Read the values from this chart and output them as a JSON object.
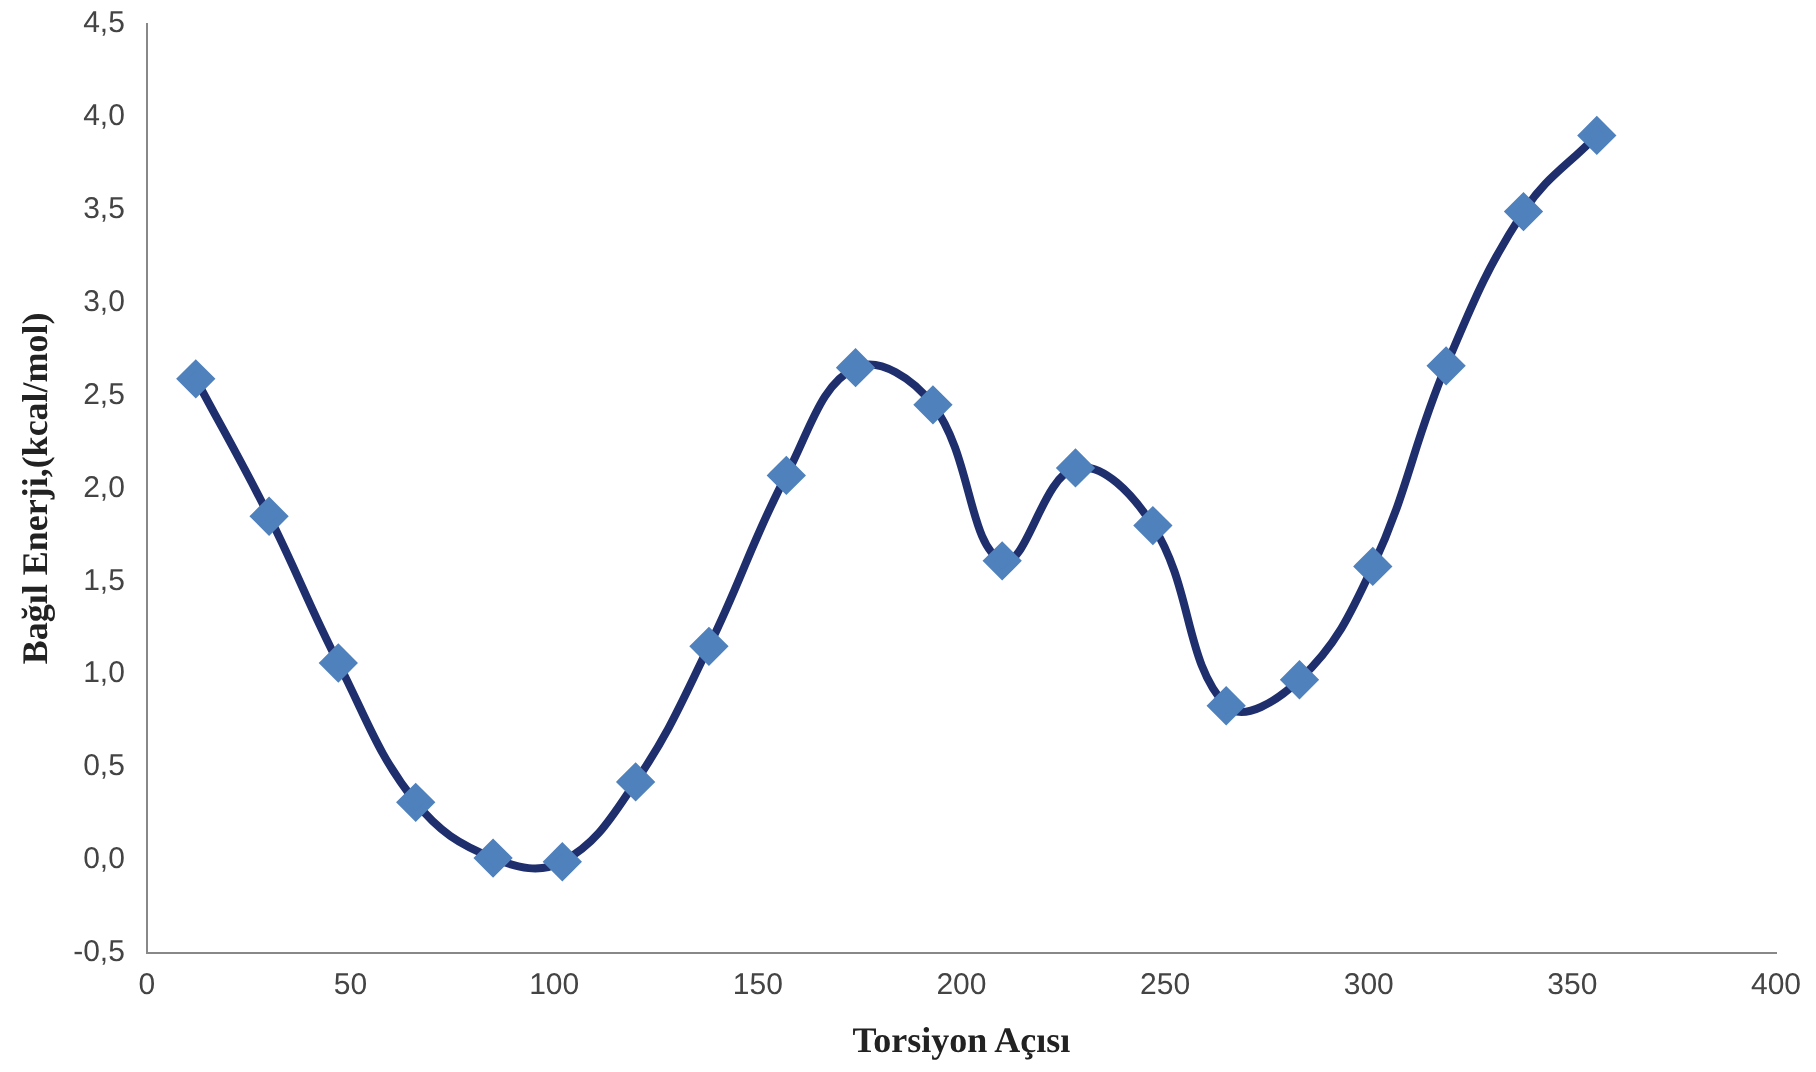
{
  "chart_data": {
    "type": "line",
    "xlabel": "Torsiyon Açısı",
    "ylabel": "Bağıl Enerji,(kcal/mol)",
    "x": [
      12,
      30,
      47,
      66,
      85,
      102,
      120,
      138,
      157,
      174,
      193,
      210,
      228,
      247,
      265,
      283,
      301,
      319,
      338,
      356
    ],
    "series": [
      {
        "color": "#1f2f6e",
        "colors": [
          "#4f81bd",
          "#4f81bd",
          "#4f81bd",
          "#4f81bd",
          "#4f81bd",
          "#4f81bd",
          "#4f81bd",
          "#4f81bd",
          "#4f81bd",
          "#4f81bd",
          "#4f81bd",
          "#4f81bd",
          "#4f81bd",
          "#4f81bd",
          "#4f81bd",
          "#4f81bd",
          "#4f81bd",
          "#4f81bd",
          "#4f81bd",
          "#4f81bd"
        ],
        "values": [
          2.59,
          1.85,
          1.06,
          0.31,
          0.01,
          -0.01,
          0.42,
          1.15,
          2.07,
          2.65,
          2.45,
          1.61,
          2.11,
          1.8,
          0.83,
          0.97,
          1.58,
          2.66,
          3.49,
          3.9
        ]
      }
    ],
    "marker": "diamond",
    "line_style": "solid",
    "grid": false,
    "legend": false,
    "xlim": [
      0,
      400
    ],
    "xticks": [
      0,
      50,
      100,
      150,
      200,
      250,
      300,
      350,
      400
    ],
    "ylim": [
      -0.5,
      4.5
    ],
    "yticks": [
      {
        "value": -0.5,
        "label": "-0,5"
      },
      {
        "value": 0,
        "label": "0,0"
      },
      {
        "value": 0.5,
        "label": "0,5"
      },
      {
        "value": 1,
        "label": "1,0"
      },
      {
        "value": 1.5,
        "label": "1,5"
      },
      {
        "value": 2,
        "label": "2,0"
      },
      {
        "value": 2.5,
        "label": "2,5"
      },
      {
        "value": 3,
        "label": "3,0"
      },
      {
        "value": 3.5,
        "label": "3,5"
      },
      {
        "value": 4,
        "label": "4,0"
      },
      {
        "value": 4.5,
        "label": "4,5"
      }
    ]
  }
}
